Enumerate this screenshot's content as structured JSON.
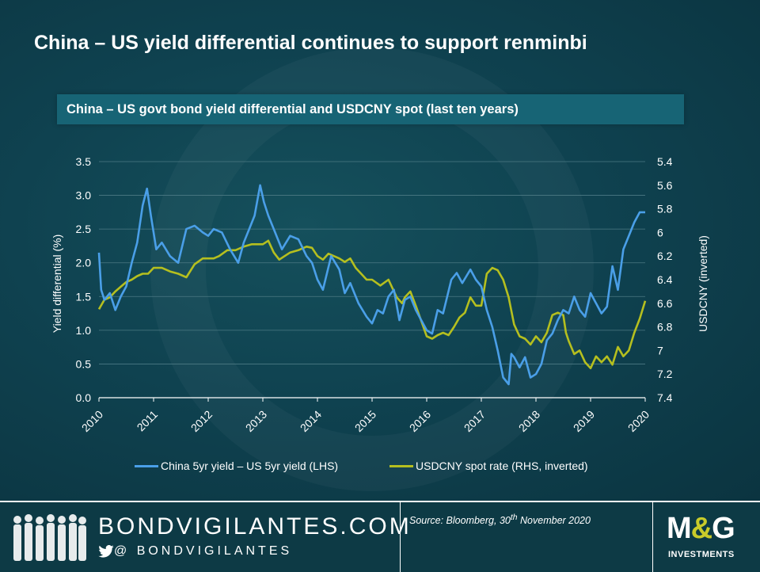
{
  "title": "China – US yield differential continues to support renminbi",
  "footer": {
    "site": "BONDVIGILANTES.COM",
    "handle": "@ BONDVIGILANTES",
    "source_main": "Source: Bloomberg, 30",
    "source_sup": "th",
    "source_tail": " November 2020",
    "logo_main": "M&G",
    "logo_left": "M",
    "logo_amp": "&",
    "logo_right": "G",
    "logo_sub": "INVESTMENTS"
  },
  "colors": {
    "yield_line": "#4a9fe8",
    "usdcny_line": "#b5bf1f",
    "gridline": "#4d7a84"
  },
  "chart_data": {
    "type": "line",
    "title": "China – US govt bond yield differential and USDCNY spot (last ten years)",
    "xlabel": "",
    "ylabel": "Yield differential (%)",
    "y2label": "USDCNY (inverted)",
    "x_ticks": [
      "2010",
      "2011",
      "2012",
      "2013",
      "2014",
      "2015",
      "2016",
      "2017",
      "2018",
      "2019",
      "2020"
    ],
    "xlim": [
      2010,
      2020
    ],
    "ylim": [
      0,
      3.5
    ],
    "y_ticks": [
      "0.0",
      "0.5",
      "1.0",
      "1.5",
      "2.0",
      "2.5",
      "3.0",
      "3.5"
    ],
    "y2lim": [
      7.4,
      5.4
    ],
    "y2_inverted": true,
    "y2_ticks": [
      "5.4",
      "5.6",
      "5.8",
      "6",
      "6.2",
      "6.4",
      "6.6",
      "6.8",
      "7",
      "7.2",
      "7.4"
    ],
    "grid": "horizontal",
    "legend_position": "bottom",
    "series": [
      {
        "name": "China 5yr yield – US 5yr yield (LHS)",
        "axis": "left",
        "x": [
          2010.0,
          2010.04,
          2010.1,
          2010.2,
          2010.3,
          2010.4,
          2010.5,
          2010.6,
          2010.7,
          2010.8,
          2010.88,
          2010.95,
          2011.05,
          2011.15,
          2011.3,
          2011.45,
          2011.6,
          2011.75,
          2011.9,
          2012.0,
          2012.1,
          2012.25,
          2012.4,
          2012.55,
          2012.65,
          2012.75,
          2012.85,
          2012.95,
          2013.02,
          2013.1,
          2013.2,
          2013.35,
          2013.5,
          2013.65,
          2013.8,
          2013.9,
          2014.0,
          2014.1,
          2014.25,
          2014.4,
          2014.5,
          2014.6,
          2014.75,
          2014.9,
          2015.0,
          2015.1,
          2015.2,
          2015.3,
          2015.4,
          2015.5,
          2015.6,
          2015.7,
          2015.8,
          2015.9,
          2016.0,
          2016.1,
          2016.2,
          2016.3,
          2016.45,
          2016.55,
          2016.65,
          2016.8,
          2016.9,
          2017.0,
          2017.1,
          2017.2,
          2017.3,
          2017.4,
          2017.5,
          2017.55,
          2017.6,
          2017.7,
          2017.8,
          2017.9,
          2018.0,
          2018.1,
          2018.2,
          2018.3,
          2018.4,
          2018.5,
          2018.6,
          2018.7,
          2018.8,
          2018.9,
          2019.0,
          2019.1,
          2019.2,
          2019.3,
          2019.4,
          2019.5,
          2019.6,
          2019.7,
          2019.8,
          2019.9,
          2020.0
        ],
        "y": [
          2.15,
          1.6,
          1.45,
          1.55,
          1.3,
          1.5,
          1.65,
          2.0,
          2.3,
          2.85,
          3.1,
          2.7,
          2.2,
          2.3,
          2.1,
          2.0,
          2.5,
          2.55,
          2.45,
          2.4,
          2.5,
          2.45,
          2.2,
          2.0,
          2.3,
          2.5,
          2.7,
          3.15,
          2.9,
          2.7,
          2.5,
          2.2,
          2.4,
          2.35,
          2.1,
          2.0,
          1.75,
          1.6,
          2.1,
          1.9,
          1.55,
          1.7,
          1.4,
          1.2,
          1.1,
          1.3,
          1.25,
          1.5,
          1.6,
          1.15,
          1.45,
          1.5,
          1.3,
          1.15,
          1.0,
          0.95,
          1.3,
          1.25,
          1.75,
          1.85,
          1.7,
          1.9,
          1.75,
          1.65,
          1.3,
          1.05,
          0.7,
          0.3,
          0.2,
          0.65,
          0.6,
          0.45,
          0.6,
          0.3,
          0.35,
          0.5,
          0.85,
          0.95,
          1.15,
          1.3,
          1.25,
          1.5,
          1.3,
          1.2,
          1.55,
          1.4,
          1.25,
          1.35,
          1.95,
          1.6,
          2.2,
          2.4,
          2.6,
          2.75,
          2.75
        ]
      },
      {
        "name": "USDCNY spot rate (RHS, inverted)",
        "axis": "right",
        "x": [
          2010.0,
          2010.1,
          2010.2,
          2010.3,
          2010.4,
          2010.5,
          2010.6,
          2010.7,
          2010.8,
          2010.9,
          2011.0,
          2011.15,
          2011.3,
          2011.45,
          2011.6,
          2011.75,
          2011.9,
          2012.0,
          2012.1,
          2012.2,
          2012.35,
          2012.5,
          2012.65,
          2012.8,
          2012.9,
          2013.0,
          2013.1,
          2013.2,
          2013.3,
          2013.4,
          2013.5,
          2013.65,
          2013.8,
          2013.9,
          2014.0,
          2014.1,
          2014.2,
          2014.3,
          2014.4,
          2014.5,
          2014.6,
          2014.7,
          2014.8,
          2014.9,
          2015.0,
          2015.15,
          2015.3,
          2015.45,
          2015.55,
          2015.6,
          2015.7,
          2015.8,
          2015.9,
          2016.0,
          2016.1,
          2016.2,
          2016.3,
          2016.4,
          2016.5,
          2016.6,
          2016.7,
          2016.8,
          2016.9,
          2017.0,
          2017.1,
          2017.2,
          2017.3,
          2017.4,
          2017.5,
          2017.6,
          2017.7,
          2017.8,
          2017.9,
          2018.0,
          2018.1,
          2018.2,
          2018.3,
          2018.4,
          2018.5,
          2018.55,
          2018.6,
          2018.7,
          2018.8,
          2018.9,
          2019.0,
          2019.1,
          2019.2,
          2019.3,
          2019.4,
          2019.5,
          2019.6,
          2019.7,
          2019.8,
          2019.9,
          2020.0
        ],
        "y": [
          6.65,
          6.57,
          6.55,
          6.5,
          6.46,
          6.42,
          6.4,
          6.37,
          6.35,
          6.35,
          6.3,
          6.3,
          6.33,
          6.35,
          6.38,
          6.27,
          6.22,
          6.22,
          6.22,
          6.2,
          6.15,
          6.15,
          6.12,
          6.1,
          6.1,
          6.1,
          6.07,
          6.17,
          6.23,
          6.2,
          6.17,
          6.15,
          6.12,
          6.13,
          6.2,
          6.23,
          6.18,
          6.2,
          6.22,
          6.25,
          6.22,
          6.3,
          6.35,
          6.4,
          6.4,
          6.45,
          6.4,
          6.55,
          6.6,
          6.55,
          6.5,
          6.62,
          6.75,
          6.88,
          6.9,
          6.87,
          6.85,
          6.87,
          6.8,
          6.72,
          6.68,
          6.55,
          6.62,
          6.62,
          6.35,
          6.3,
          6.32,
          6.4,
          6.55,
          6.78,
          6.88,
          6.9,
          6.95,
          6.88,
          6.93,
          6.85,
          6.7,
          6.68,
          6.7,
          6.85,
          6.92,
          7.03,
          7.0,
          7.1,
          7.15,
          7.05,
          7.1,
          7.05,
          7.12,
          6.97,
          7.05,
          7.0,
          6.85,
          6.73,
          6.58
        ]
      }
    ]
  }
}
